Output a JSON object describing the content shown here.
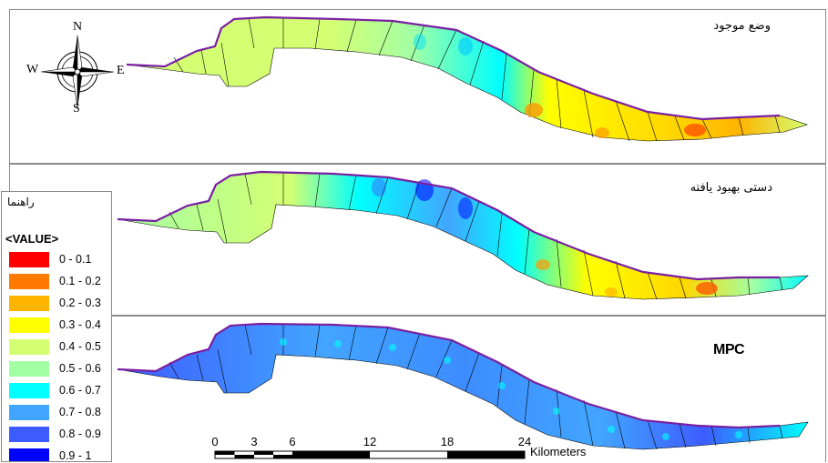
{
  "panels": [
    {
      "id": "current",
      "title": "وضع موجود"
    },
    {
      "id": "improved",
      "title": "دستی بهبود یافته"
    },
    {
      "id": "mpc",
      "title": "MPC"
    }
  ],
  "legend": {
    "title": "راهنما",
    "field": "<VALUE>",
    "items": [
      {
        "label": "0 - 0.1",
        "color": "#ff0000"
      },
      {
        "label": "0.1 - 0.2",
        "color": "#ff7a00"
      },
      {
        "label": "0.2 - 0.3",
        "color": "#ffb400"
      },
      {
        "label": "0.3 - 0.4",
        "color": "#ffff00"
      },
      {
        "label": "0.4 - 0.5",
        "color": "#d4ff73"
      },
      {
        "label": "0.5 - 0.6",
        "color": "#a3ffa3"
      },
      {
        "label": "0.6 - 0.7",
        "color": "#00ffff"
      },
      {
        "label": "0.7 - 0.8",
        "color": "#42a5ff"
      },
      {
        "label": "0.8 - 0.9",
        "color": "#3d5cff"
      },
      {
        "label": "0.9 - 1",
        "color": "#0000ff"
      }
    ]
  },
  "north_arrow": {
    "n": "N",
    "s": "S",
    "e": "E",
    "w": "W"
  },
  "scale_bar": {
    "ticks": [
      "0",
      "3",
      "6",
      "12",
      "18",
      "24"
    ],
    "unit": "Kilometers"
  }
}
